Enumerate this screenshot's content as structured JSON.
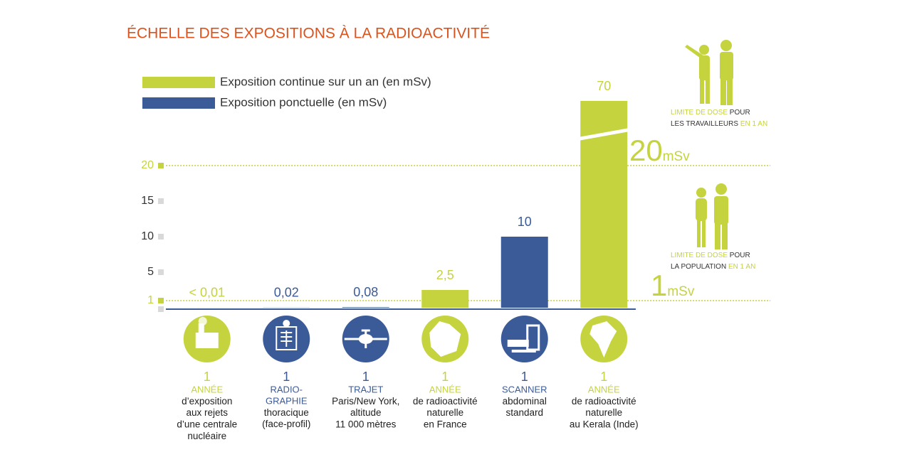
{
  "chart_data": {
    "type": "bar",
    "title": "ÉCHELLE DES EXPOSITIONS À LA RADIOACTIVITÉ",
    "series": [
      {
        "name": "Exposition continue sur un an (en mSv)",
        "color": "#c5d33f",
        "values": [
          0.01,
          null,
          null,
          2.5,
          null,
          70
        ],
        "value_labels": [
          "< 0,01",
          null,
          null,
          "2,5",
          null,
          "70"
        ]
      },
      {
        "name": "Exposition ponctuelle (en mSv)",
        "color": "#3b5b98",
        "values": [
          null,
          0.02,
          0.08,
          null,
          10,
          null
        ],
        "value_labels": [
          null,
          "0,02",
          "0,08",
          null,
          "10",
          null
        ]
      }
    ],
    "category_details": [
      {
        "count": 1,
        "kind": "ANNÉE",
        "lines": [
          "d’exposition",
          "aux rejets",
          "d’une centrale",
          "nucléaire"
        ]
      },
      {
        "count": 1,
        "kind": "RADIO-",
        "kind2": "GRAPHIE",
        "lines": [
          "thoracique",
          "(face-profil)"
        ]
      },
      {
        "count": 1,
        "kind": "TRAJET",
        "lines": [
          "Paris/New York,",
          "altitude",
          "11 000 mètres"
        ]
      },
      {
        "count": 1,
        "kind": "ANNÉE",
        "lines": [
          "de radioactivité",
          "naturelle",
          "en France"
        ]
      },
      {
        "count": 1,
        "kind": "SCANNER",
        "lines": [
          "abdominal",
          "standard"
        ]
      },
      {
        "count": 1,
        "kind": "ANNÉE",
        "lines": [
          "de radioactivité",
          "naturelle",
          "au Kerala (Inde)"
        ]
      }
    ],
    "ylim": [
      0,
      20
    ],
    "yticks": [
      1,
      5,
      10,
      15,
      20
    ],
    "reference_lines": [
      {
        "value": 20,
        "label": "20",
        "unit": "mSv",
        "note": [
          [
            {
              "text": "LIMITE DE DOSE",
              "color": "#c5d33f"
            },
            {
              "text": "POUR",
              "color": "#333333"
            }
          ],
          [
            {
              "text": "LES TRAVAILLEURS",
              "color": "#333333"
            },
            {
              "text": "EN 1 AN",
              "color": "#c5d33f"
            }
          ]
        ]
      },
      {
        "value": 1,
        "label": "1",
        "unit": "mSv",
        "note": [
          [
            {
              "text": "LIMITE DE DOSE",
              "color": "#c5d33f"
            },
            {
              "text": "POUR",
              "color": "#333333"
            }
          ],
          [
            {
              "text": "LA POPULATION",
              "color": "#333333"
            },
            {
              "text": "EN 1 AN",
              "color": "#c5d33f"
            }
          ]
        ]
      }
    ]
  }
}
